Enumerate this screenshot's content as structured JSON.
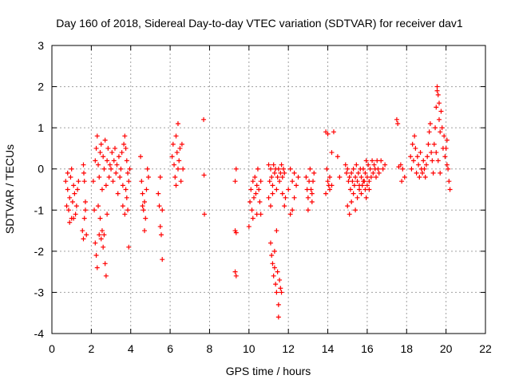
{
  "chart_data": {
    "type": "scatter",
    "title": "Day 160 of 2018, Sidereal Day-to-day VTEC variation (SDTVAR) for receiver dav1",
    "xlabel": "GPS time / hours",
    "ylabel": "SDTVAR / TECUs",
    "xlim": [
      0,
      22
    ],
    "ylim": [
      -4,
      3
    ],
    "xticks": [
      0,
      2,
      4,
      6,
      8,
      10,
      12,
      14,
      16,
      18,
      20,
      22
    ],
    "yticks": [
      -4,
      -3,
      -2,
      -1,
      0,
      1,
      2,
      3
    ],
    "grid": true,
    "marker": "+",
    "color": "#ff0000",
    "series": [
      {
        "name": "SDTVAR",
        "points": [
          [
            0.7,
            -0.3
          ],
          [
            0.75,
            -0.9
          ],
          [
            0.8,
            -0.5
          ],
          [
            0.85,
            -1.0
          ],
          [
            0.9,
            -0.7
          ],
          [
            0.95,
            -0.2
          ],
          [
            1.0,
            -1.2
          ],
          [
            1.05,
            -0.8
          ],
          [
            1.1,
            -0.4
          ],
          [
            1.15,
            -0.6
          ],
          [
            1.2,
            -1.1
          ],
          [
            1.25,
            -0.9
          ],
          [
            1.3,
            -0.5
          ],
          [
            1.35,
            -0.3
          ],
          [
            0.8,
            -0.1
          ],
          [
            1.0,
            0.0
          ],
          [
            0.9,
            -1.3
          ],
          [
            1.1,
            -1.2
          ],
          [
            1.55,
            -1.5
          ],
          [
            1.6,
            -1.7
          ],
          [
            1.65,
            -1.2
          ],
          [
            1.7,
            -0.8
          ],
          [
            1.6,
            0.1
          ],
          [
            1.65,
            -0.3
          ],
          [
            1.7,
            -1.0
          ],
          [
            1.75,
            -1.6
          ],
          [
            1.62,
            -0.1
          ],
          [
            2.1,
            -0.3
          ],
          [
            2.15,
            -1.0
          ],
          [
            2.2,
            0.2
          ],
          [
            2.25,
            0.5
          ],
          [
            2.3,
            0.8
          ],
          [
            2.35,
            0.1
          ],
          [
            2.4,
            -0.2
          ],
          [
            2.45,
            0.4
          ],
          [
            2.5,
            0.6
          ],
          [
            2.55,
            -0.5
          ],
          [
            2.6,
            0.3
          ],
          [
            2.65,
            0.0
          ],
          [
            2.7,
            0.7
          ],
          [
            2.75,
            -0.4
          ],
          [
            2.8,
            0.2
          ],
          [
            2.85,
            0.5
          ],
          [
            2.9,
            -0.2
          ],
          [
            2.95,
            0.1
          ],
          [
            2.2,
            -1.8
          ],
          [
            2.25,
            -2.1
          ],
          [
            2.3,
            -2.4
          ],
          [
            2.4,
            -1.6
          ],
          [
            2.5,
            -1.7
          ],
          [
            2.55,
            -1.5
          ],
          [
            2.6,
            -1.9
          ],
          [
            2.65,
            -1.6
          ],
          [
            2.7,
            -2.3
          ],
          [
            2.75,
            -2.6
          ],
          [
            2.45,
            -1.2
          ],
          [
            2.35,
            -0.9
          ],
          [
            2.8,
            -1.1
          ],
          [
            3.0,
            0.0
          ],
          [
            3.05,
            0.4
          ],
          [
            3.1,
            -0.3
          ],
          [
            3.15,
            0.2
          ],
          [
            3.2,
            0.5
          ],
          [
            3.25,
            -0.1
          ],
          [
            3.3,
            0.1
          ],
          [
            3.35,
            -0.6
          ],
          [
            3.4,
            0.3
          ],
          [
            3.45,
            -0.2
          ],
          [
            3.5,
            0.0
          ],
          [
            3.55,
            0.4
          ],
          [
            3.6,
            -0.4
          ],
          [
            3.65,
            0.6
          ],
          [
            3.7,
            0.8
          ],
          [
            3.75,
            0.5
          ],
          [
            3.8,
            0.2
          ],
          [
            3.85,
            -0.1
          ],
          [
            3.9,
            -0.3
          ],
          [
            3.95,
            0.0
          ],
          [
            3.6,
            -0.9
          ],
          [
            3.7,
            -1.1
          ],
          [
            3.8,
            -0.7
          ],
          [
            3.85,
            -1.0
          ],
          [
            3.9,
            -1.9
          ],
          [
            3.75,
            -0.5
          ],
          [
            4.5,
            0.3
          ],
          [
            4.55,
            -0.3
          ],
          [
            4.6,
            -0.6
          ],
          [
            4.65,
            -1.0
          ],
          [
            4.7,
            -0.8
          ],
          [
            4.75,
            -1.2
          ],
          [
            4.8,
            -0.5
          ],
          [
            4.85,
            0.0
          ],
          [
            4.9,
            -0.2
          ],
          [
            4.7,
            -1.5
          ],
          [
            4.6,
            -0.9
          ],
          [
            5.4,
            -0.6
          ],
          [
            5.45,
            -0.9
          ],
          [
            5.5,
            -1.4
          ],
          [
            5.55,
            -1.6
          ],
          [
            5.6,
            -2.2
          ],
          [
            5.5,
            -0.2
          ],
          [
            5.6,
            -1.0
          ],
          [
            6.1,
            0.3
          ],
          [
            6.15,
            0.6
          ],
          [
            6.2,
            0.1
          ],
          [
            6.25,
            -0.2
          ],
          [
            6.3,
            0.8
          ],
          [
            6.35,
            0.4
          ],
          [
            6.4,
            1.1
          ],
          [
            6.45,
            0.2
          ],
          [
            6.5,
            0.5
          ],
          [
            6.55,
            -0.3
          ],
          [
            6.6,
            0.6
          ],
          [
            6.65,
            0.0
          ],
          [
            6.3,
            -0.4
          ],
          [
            6.4,
            0.0
          ],
          [
            7.7,
            1.2
          ],
          [
            7.72,
            -0.15
          ],
          [
            7.74,
            -1.1
          ],
          [
            9.3,
            -0.3
          ],
          [
            9.35,
            0.0
          ],
          [
            9.3,
            -1.5
          ],
          [
            9.35,
            -1.55
          ],
          [
            9.3,
            -2.5
          ],
          [
            9.35,
            -2.6
          ],
          [
            10.0,
            -1.4
          ],
          [
            10.05,
            -0.8
          ],
          [
            10.1,
            -0.5
          ],
          [
            10.15,
            -1.0
          ],
          [
            10.2,
            -0.3
          ],
          [
            10.25,
            -0.7
          ],
          [
            10.3,
            -0.2
          ],
          [
            10.35,
            -0.6
          ],
          [
            10.4,
            -0.4
          ],
          [
            10.45,
            0.0
          ],
          [
            10.5,
            -0.5
          ],
          [
            10.55,
            -0.8
          ],
          [
            10.6,
            -0.3
          ],
          [
            10.2,
            -1.2
          ],
          [
            10.4,
            -1.1
          ],
          [
            10.6,
            -1.1
          ],
          [
            11.0,
            0.1
          ],
          [
            11.05,
            -0.3
          ],
          [
            11.1,
            0.0
          ],
          [
            11.15,
            -0.2
          ],
          [
            11.2,
            -0.4
          ],
          [
            11.25,
            0.1
          ],
          [
            11.3,
            -0.1
          ],
          [
            11.35,
            0.0
          ],
          [
            11.4,
            -0.5
          ],
          [
            11.45,
            -0.2
          ],
          [
            11.5,
            0.0
          ],
          [
            11.55,
            -0.3
          ],
          [
            11.6,
            -0.1
          ],
          [
            11.65,
            0.1
          ],
          [
            11.7,
            -0.2
          ],
          [
            11.75,
            0.0
          ],
          [
            11.8,
            -0.1
          ],
          [
            11.0,
            -0.7
          ],
          [
            11.1,
            -0.9
          ],
          [
            11.2,
            -0.6
          ],
          [
            11.1,
            -1.8
          ],
          [
            11.15,
            -2.1
          ],
          [
            11.2,
            -2.3
          ],
          [
            11.25,
            -2.6
          ],
          [
            11.3,
            -2.4
          ],
          [
            11.35,
            -2.8
          ],
          [
            11.4,
            -3.0
          ],
          [
            11.45,
            -2.5
          ],
          [
            11.5,
            -3.3
          ],
          [
            11.55,
            -2.7
          ],
          [
            11.5,
            -3.6
          ],
          [
            11.6,
            -2.9
          ],
          [
            11.65,
            -3.0
          ],
          [
            11.4,
            -1.5
          ],
          [
            11.3,
            -2.0
          ],
          [
            11.7,
            -0.6
          ],
          [
            11.8,
            -0.9
          ],
          [
            11.85,
            -0.7
          ],
          [
            12.0,
            -0.5
          ],
          [
            12.1,
            0.0
          ],
          [
            12.2,
            -0.3
          ],
          [
            12.3,
            -0.1
          ],
          [
            12.4,
            -0.4
          ],
          [
            12.2,
            -1.0
          ],
          [
            12.1,
            -1.1
          ],
          [
            12.3,
            -0.7
          ],
          [
            12.5,
            -0.2
          ],
          [
            12.9,
            -0.2
          ],
          [
            12.95,
            -0.5
          ],
          [
            13.0,
            -0.7
          ],
          [
            13.05,
            -0.3
          ],
          [
            13.1,
            0.0
          ],
          [
            13.15,
            -0.5
          ],
          [
            13.2,
            -0.8
          ],
          [
            13.25,
            -0.3
          ],
          [
            13.3,
            -0.1
          ],
          [
            13.0,
            -1.0
          ],
          [
            13.2,
            -0.6
          ],
          [
            13.9,
            0.9
          ],
          [
            13.95,
            0.0
          ],
          [
            14.0,
            -0.3
          ],
          [
            14.05,
            -0.4
          ],
          [
            14.1,
            -0.5
          ],
          [
            14.0,
            0.85
          ],
          [
            14.1,
            -0.2
          ],
          [
            13.9,
            -0.6
          ],
          [
            14.2,
            -0.4
          ],
          [
            14.3,
            0.9
          ],
          [
            14.9,
            0.1
          ],
          [
            14.95,
            -0.1
          ],
          [
            15.0,
            0.0
          ],
          [
            15.05,
            -0.3
          ],
          [
            15.1,
            -0.2
          ],
          [
            15.15,
            -0.5
          ],
          [
            15.2,
            -0.1
          ],
          [
            15.25,
            -0.3
          ],
          [
            15.3,
            0.0
          ],
          [
            15.35,
            -0.4
          ],
          [
            15.4,
            -0.2
          ],
          [
            15.45,
            0.1
          ],
          [
            15.5,
            -0.3
          ],
          [
            15.55,
            -0.1
          ],
          [
            15.6,
            -0.5
          ],
          [
            15.65,
            0.0
          ],
          [
            15.7,
            -0.2
          ],
          [
            15.75,
            -0.4
          ],
          [
            15.8,
            0.0
          ],
          [
            15.85,
            -0.3
          ],
          [
            15.9,
            -0.1
          ],
          [
            15.95,
            0.2
          ],
          [
            16.0,
            -0.2
          ],
          [
            16.05,
            0.1
          ],
          [
            16.1,
            -0.3
          ],
          [
            16.15,
            0.0
          ],
          [
            16.2,
            -0.2
          ],
          [
            16.25,
            0.2
          ],
          [
            16.3,
            -0.1
          ],
          [
            16.35,
            0.1
          ],
          [
            16.4,
            0.0
          ],
          [
            16.45,
            -0.2
          ],
          [
            16.5,
            0.2
          ],
          [
            16.55,
            0.0
          ],
          [
            16.6,
            -0.1
          ],
          [
            16.7,
            0.2
          ],
          [
            16.8,
            0.0
          ],
          [
            16.9,
            0.1
          ],
          [
            15.0,
            -0.9
          ],
          [
            15.1,
            -1.1
          ],
          [
            15.2,
            -0.8
          ],
          [
            15.3,
            -0.6
          ],
          [
            15.4,
            -1.0
          ],
          [
            15.5,
            -0.7
          ],
          [
            15.6,
            -0.4
          ],
          [
            15.7,
            -0.6
          ],
          [
            15.8,
            -0.3
          ],
          [
            15.9,
            -0.5
          ],
          [
            16.0,
            -0.4
          ],
          [
            15.95,
            -0.7
          ],
          [
            16.1,
            -0.5
          ],
          [
            14.2,
            0.4
          ],
          [
            14.5,
            0.3
          ],
          [
            14.6,
            -0.2
          ],
          [
            17.5,
            1.2
          ],
          [
            17.55,
            1.1
          ],
          [
            17.7,
            0.1
          ],
          [
            17.8,
            0.0
          ],
          [
            17.9,
            -0.2
          ],
          [
            17.75,
            -0.3
          ],
          [
            17.6,
            0.05
          ],
          [
            18.2,
            0.3
          ],
          [
            18.25,
            0.0
          ],
          [
            18.3,
            0.6
          ],
          [
            18.35,
            0.2
          ],
          [
            18.4,
            0.8
          ],
          [
            18.45,
            0.5
          ],
          [
            18.5,
            -0.1
          ],
          [
            18.55,
            0.3
          ],
          [
            18.6,
            0.1
          ],
          [
            18.65,
            -0.2
          ],
          [
            18.7,
            0.4
          ],
          [
            18.75,
            0.0
          ],
          [
            18.8,
            -0.1
          ],
          [
            18.85,
            0.2
          ],
          [
            18.9,
            0.0
          ],
          [
            18.95,
            -0.2
          ],
          [
            19.0,
            0.1
          ],
          [
            19.05,
            0.3
          ],
          [
            19.1,
            0.6
          ],
          [
            19.15,
            0.9
          ],
          [
            19.2,
            1.1
          ],
          [
            19.25,
            0.4
          ],
          [
            19.3,
            0.2
          ],
          [
            19.35,
            -0.1
          ],
          [
            19.4,
            0.6
          ],
          [
            19.45,
            1.0
          ],
          [
            19.5,
            1.5
          ],
          [
            19.55,
            2.0
          ],
          [
            19.6,
            1.8
          ],
          [
            19.65,
            1.2
          ],
          [
            19.7,
            0.9
          ],
          [
            19.75,
            1.4
          ],
          [
            19.8,
            1.0
          ],
          [
            19.85,
            0.5
          ],
          [
            19.9,
            0.8
          ],
          [
            19.95,
            0.3
          ],
          [
            20.0,
            0.5
          ],
          [
            20.05,
            0.1
          ],
          [
            20.1,
            0.0
          ],
          [
            20.15,
            -0.3
          ],
          [
            20.2,
            -0.5
          ],
          [
            20.05,
            0.7
          ],
          [
            19.6,
            0.2
          ],
          [
            19.7,
            -0.1
          ],
          [
            19.5,
            0.4
          ],
          [
            19.55,
            1.9
          ],
          [
            19.65,
            1.6
          ]
        ]
      }
    ]
  }
}
